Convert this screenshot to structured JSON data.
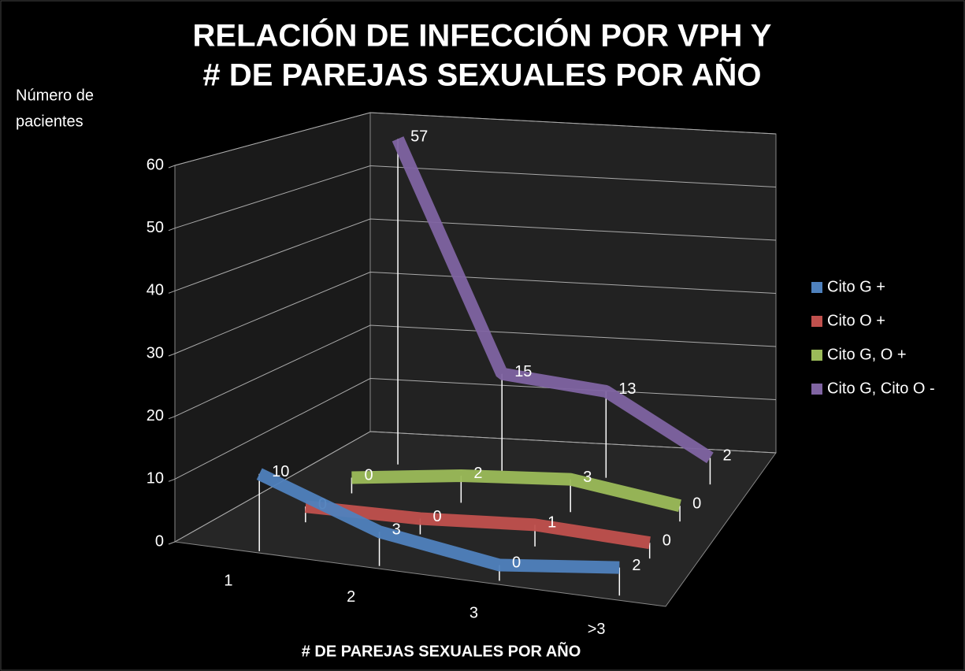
{
  "chart_data": {
    "type": "line",
    "title": [
      "RELACIÓN DE INFECCIÓN POR VPH Y",
      "# DE PAREJAS  SEXUALES POR AÑO"
    ],
    "y_axis_label": [
      "Número de",
      "pacientes"
    ],
    "x_axis_label": "# DE PAREJAS SEXUALES POR AÑO",
    "categories": [
      "1",
      "2",
      "3",
      ">3"
    ],
    "series": [
      {
        "name": "Cito G +",
        "color": "#4f81bd",
        "values": [
          10,
          3,
          0,
          2
        ]
      },
      {
        "name": "Cito O +",
        "color": "#c0504d",
        "values": [
          0,
          0,
          1,
          0
        ]
      },
      {
        "name": "Cito G, O +",
        "color": "#9bbb59",
        "values": [
          0,
          2,
          3,
          0
        ]
      },
      {
        "name": "Cito G, Cito O -",
        "color": "#8064a2",
        "values": [
          57,
          15,
          13,
          2
        ]
      }
    ],
    "ylim": [
      0,
      60
    ],
    "yticks": [
      0,
      10,
      20,
      30,
      40,
      50,
      60
    ],
    "grid": true,
    "legend": "right"
  }
}
